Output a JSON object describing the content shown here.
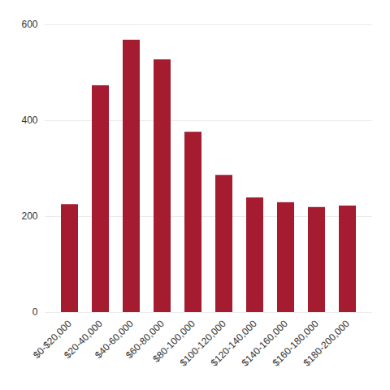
{
  "chart_data": {
    "type": "bar",
    "categories": [
      "$0-$20,000",
      "$20-40,000",
      "$40-60,000",
      "$60-80,000",
      "$80-100,000",
      "$100-120,000",
      "$120-140,000",
      "$140-160,000",
      "$160-180,000",
      "$180-200,000"
    ],
    "values": [
      225,
      473,
      568,
      527,
      376,
      286,
      239,
      229,
      219,
      222
    ],
    "color": "#a51c30",
    "ylim": [
      0,
      600
    ],
    "yticks": [
      0,
      200,
      400,
      600
    ],
    "grid": true
  }
}
